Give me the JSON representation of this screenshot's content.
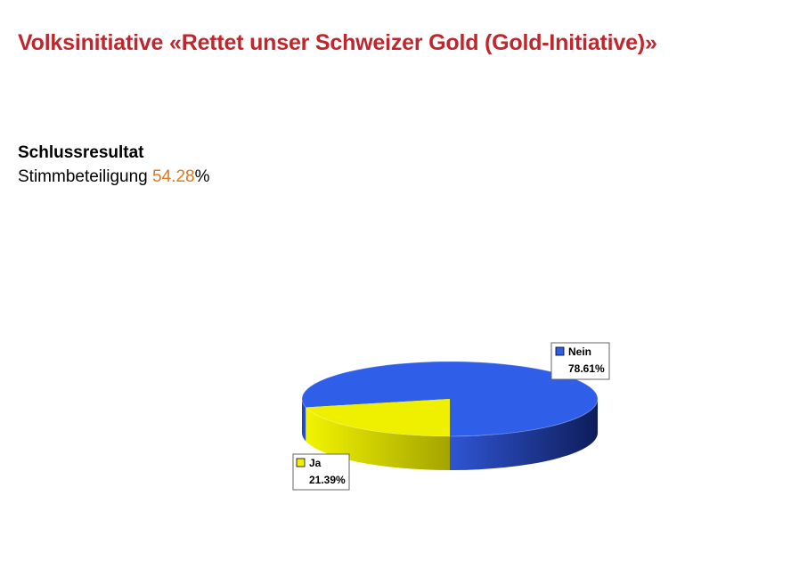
{
  "title": "Volksinitiative «Rettet unser Schweizer Gold (Gold-Initiative)»",
  "subtitle": "Schlussresultat",
  "turnout": {
    "label": "Stimmbeteiligung",
    "value": "54.28",
    "unit": "%"
  },
  "chart_data": {
    "type": "pie",
    "slices": [
      {
        "name": "Nein",
        "value": 78.61,
        "label": "78.61%",
        "color": "#2f5fe8"
      },
      {
        "name": "Ja",
        "value": 21.39,
        "label": "21.39%",
        "color": "#eef000"
      }
    ]
  }
}
